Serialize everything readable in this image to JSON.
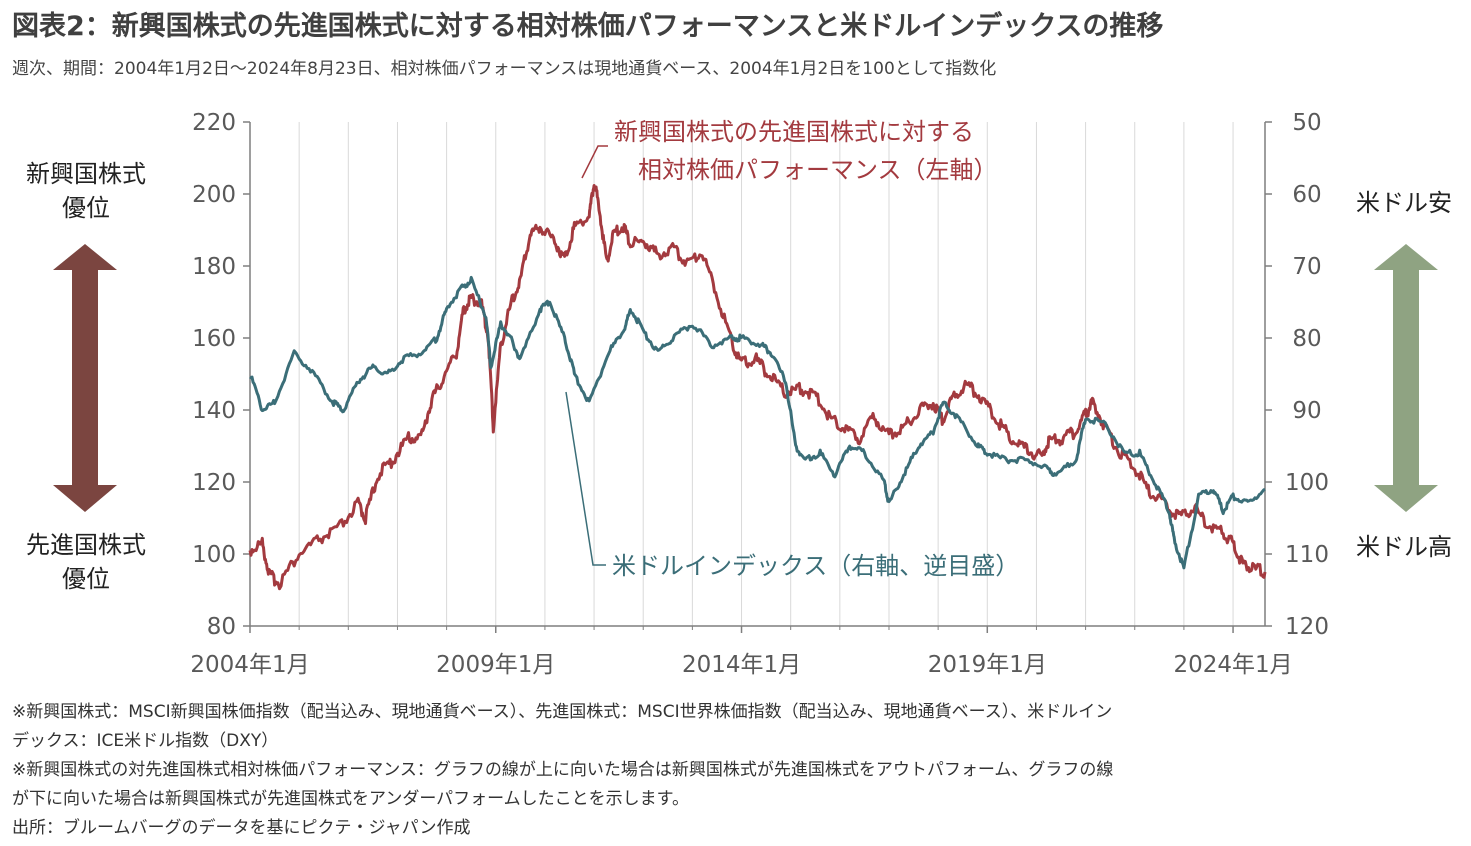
{
  "title": "図表2：新興国株式の先進国株式に対する相対株価パフォーマンスと米ドルインデックスの推移",
  "subtitle": "週次、期間：2004年1月2日～2024年8月23日、相対株価パフォーマンスは現地通貨ベース、2004年1月2日を100として指数化",
  "left_labels": {
    "top_line1": "新興国株式",
    "top_line2": "優位",
    "bottom_line1": "先進国株式",
    "bottom_line2": "優位"
  },
  "right_labels": {
    "top": "米ドル安",
    "bottom": "米ドル高"
  },
  "annotations": {
    "em_line1": "新興国株式の先進国株式に対する",
    "em_line2": "相対株価パフォーマンス（左軸）",
    "usd": "米ドルインデックス（右軸、逆目盛）"
  },
  "notes": [
    "※新興国株式：MSCI新興国株価指数（配当込み、現地通貨ベース）、先進国株式：MSCI世界株価指数（配当込み、現地通貨ベース）、米ドルイン",
    "デックス：ICE米ドル指数（DXY）",
    "※新興国株式の対先進国株式相対株価パフォーマンス：グラフの線が上に向いた場合は新興国株式が先進国株式をアウトパフォーム、グラフの線",
    "が下に向いた場合は新興国株式が先進国株式をアンダーパフォームしたことを示します。",
    "出所：ブルームバーグのデータを基にピクテ・ジャパン作成"
  ],
  "colors": {
    "em_series": "#a33a3f",
    "usd_series": "#3b6e78",
    "left_arrow": "#7b4540",
    "right_arrow": "#8fa382",
    "axis": "#7f7f7f",
    "grid": "#d9d9d9"
  },
  "chart_data": {
    "type": "line",
    "x_tick_labels": [
      "2004年1月",
      "2009年1月",
      "2014年1月",
      "2019年1月",
      "2024年1月"
    ],
    "x_ticks": [
      2004.0,
      2009.0,
      2014.0,
      2019.0,
      2024.0
    ],
    "xlim": [
      2004.0,
      2024.65
    ],
    "y_left": {
      "lim": [
        80,
        220
      ],
      "ticks": [
        80,
        100,
        120,
        140,
        160,
        180,
        200,
        220
      ]
    },
    "y_right": {
      "lim": [
        50,
        120
      ],
      "inverted": true,
      "ticks": [
        50,
        60,
        70,
        80,
        90,
        100,
        110,
        120
      ]
    },
    "grid": "vertical",
    "series": [
      {
        "name": "新興国株式の先進国株式に対する相対株価パフォーマンス（左軸）",
        "axis": "left",
        "x": [
          2004.0,
          2004.25,
          2004.4,
          2004.6,
          2005.0,
          2005.4,
          2005.8,
          2006.2,
          2006.35,
          2006.6,
          2006.9,
          2007.2,
          2007.5,
          2007.7,
          2007.9,
          2008.2,
          2008.35,
          2008.5,
          2008.7,
          2008.85,
          2008.95,
          2009.1,
          2009.3,
          2009.5,
          2009.7,
          2009.9,
          2010.2,
          2010.4,
          2010.6,
          2010.9,
          2011.0,
          2011.1,
          2011.25,
          2011.4,
          2011.6,
          2011.75,
          2012.0,
          2012.3,
          2012.6,
          2012.9,
          2013.2,
          2013.5,
          2013.8,
          2014.0,
          2014.3,
          2014.6,
          2014.9,
          2015.2,
          2015.5,
          2015.8,
          2016.1,
          2016.4,
          2016.7,
          2017.0,
          2017.3,
          2017.6,
          2017.9,
          2018.1,
          2018.3,
          2018.6,
          2018.9,
          2019.2,
          2019.5,
          2019.8,
          2020.1,
          2020.25,
          2020.5,
          2020.8,
          2021.0,
          2021.15,
          2021.4,
          2021.7,
          2022.0,
          2022.3,
          2022.6,
          2022.9,
          2023.2,
          2023.5,
          2023.8,
          2024.0,
          2024.2,
          2024.4,
          2024.65
        ],
        "y": [
          101,
          103,
          94,
          92,
          100,
          104,
          107,
          114,
          110,
          122,
          126,
          132,
          133,
          143,
          148,
          156,
          168,
          171,
          170,
          160,
          135,
          158,
          169,
          176,
          189,
          191,
          187,
          182,
          191,
          194,
          203,
          197,
          181,
          189,
          191,
          186,
          187,
          183,
          185,
          181,
          184,
          172,
          159,
          153,
          154,
          149,
          145,
          146,
          144,
          138,
          135,
          132,
          138,
          133,
          135,
          140,
          142,
          137,
          144,
          147,
          143,
          137,
          132,
          129,
          127,
          131,
          132,
          134,
          139,
          142,
          135,
          128,
          124,
          117,
          114,
          110,
          113,
          108,
          106,
          103,
          97,
          96,
          95
        ]
      },
      {
        "name": "米ドルインデックス（右軸、逆目盛）",
        "axis": "right",
        "x": [
          2004.0,
          2004.25,
          2004.5,
          2004.9,
          2005.3,
          2005.7,
          2005.9,
          2006.2,
          2006.5,
          2006.8,
          2007.1,
          2007.5,
          2007.8,
          2008.0,
          2008.3,
          2008.5,
          2008.8,
          2008.9,
          2009.1,
          2009.3,
          2009.5,
          2009.9,
          2010.1,
          2010.4,
          2010.6,
          2010.9,
          2011.3,
          2011.6,
          2011.75,
          2012.0,
          2012.3,
          2012.6,
          2013.0,
          2013.4,
          2013.8,
          2014.0,
          2014.4,
          2014.6,
          2014.9,
          2015.1,
          2015.3,
          2015.6,
          2015.9,
          2016.2,
          2016.5,
          2016.9,
          2017.0,
          2017.3,
          2017.6,
          2017.9,
          2018.1,
          2018.4,
          2018.8,
          2019.0,
          2019.4,
          2019.8,
          2020.2,
          2020.4,
          2020.8,
          2021.0,
          2021.4,
          2021.8,
          2022.1,
          2022.4,
          2022.7,
          2022.8,
          2023.0,
          2023.3,
          2023.6,
          2023.8,
          2024.0,
          2024.3,
          2024.65
        ],
        "y": [
          85,
          90,
          89,
          82,
          85,
          89,
          90,
          86,
          84,
          85,
          83,
          82,
          80,
          76,
          73,
          72,
          77,
          84,
          78,
          80,
          83,
          76,
          75,
          80,
          85,
          89,
          82,
          79,
          76,
          79,
          82,
          80,
          78,
          81,
          80,
          80,
          81,
          82,
          86,
          95,
          97,
          96,
          99,
          95,
          96,
          100,
          103,
          99,
          95,
          93,
          89,
          91,
          95,
          96,
          97,
          97,
          98,
          99,
          97,
          91,
          92,
          96,
          96,
          100,
          104,
          108,
          112,
          102,
          101,
          104,
          102,
          103,
          101
        ]
      }
    ]
  }
}
